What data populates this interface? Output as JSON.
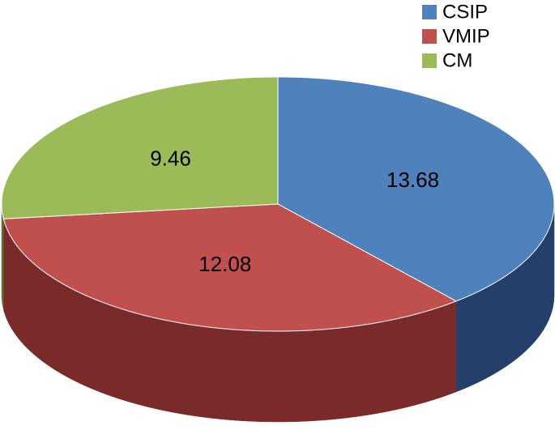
{
  "chart_data": {
    "type": "pie",
    "categories": [
      "CSIP",
      "VMIP",
      "CM"
    ],
    "values": [
      13.68,
      12.08,
      9.46
    ],
    "colors": [
      "#4f81bd",
      "#c0504d",
      "#9bbb59"
    ],
    "side_colors": [
      "#24406a",
      "#7a2b29",
      "#5b7332"
    ],
    "legend": "top-right",
    "three_d": true
  }
}
